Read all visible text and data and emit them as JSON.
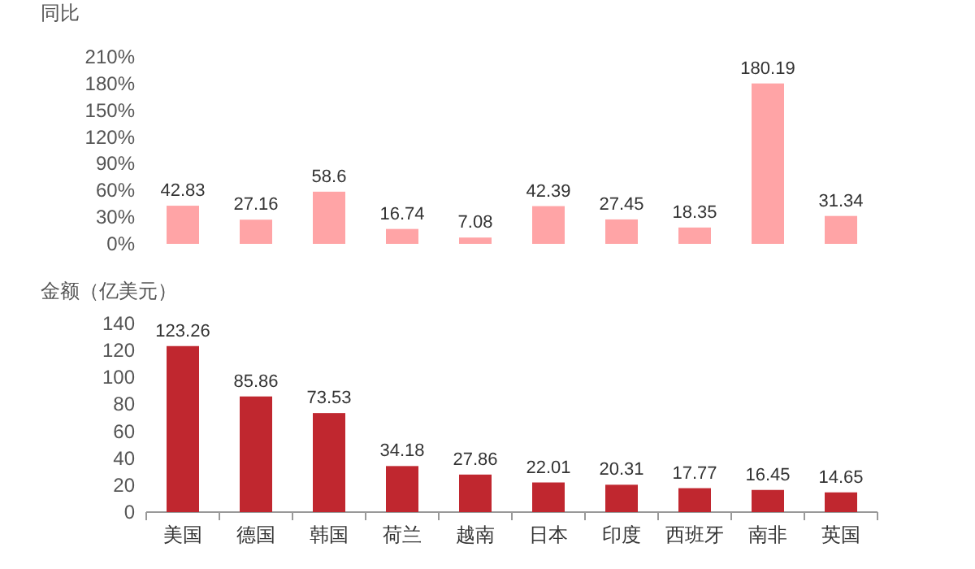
{
  "chart_data": [
    {
      "type": "bar",
      "ylabel": "同比",
      "categories": [
        null,
        null,
        null,
        null,
        null,
        null,
        null,
        null,
        null,
        null
      ],
      "values": [
        42.83,
        27.16,
        58.6,
        16.74,
        7.08,
        42.39,
        27.45,
        18.35,
        180.19,
        31.34
      ],
      "color": "#ffa4a6",
      "data_labels": true,
      "ylim": [
        0,
        210
      ],
      "yticks": [
        {
          "value": 0,
          "label": "0%"
        },
        {
          "value": 30,
          "label": "30%"
        },
        {
          "value": 60,
          "label": "60%"
        },
        {
          "value": 90,
          "label": "90%"
        },
        {
          "value": 120,
          "label": "120%"
        },
        {
          "value": 150,
          "label": "150%"
        },
        {
          "value": 180,
          "label": "180%"
        },
        {
          "value": 210,
          "label": "210%"
        }
      ],
      "tick_labels": "y"
    },
    {
      "type": "bar",
      "ylabel": "金额（亿美元）",
      "categories": [
        "美国",
        "德国",
        "韩国",
        "荷兰",
        "越南",
        "日本",
        "印度",
        "西班牙",
        "南非",
        "英国"
      ],
      "values": [
        123.26,
        85.86,
        73.53,
        34.18,
        27.86,
        22.01,
        20.31,
        17.77,
        16.45,
        14.65
      ],
      "color": "#c0272f",
      "data_labels": true,
      "ylim": [
        0,
        140
      ],
      "yticks": [
        0,
        20,
        40,
        60,
        80,
        100,
        120,
        140
      ]
    }
  ]
}
